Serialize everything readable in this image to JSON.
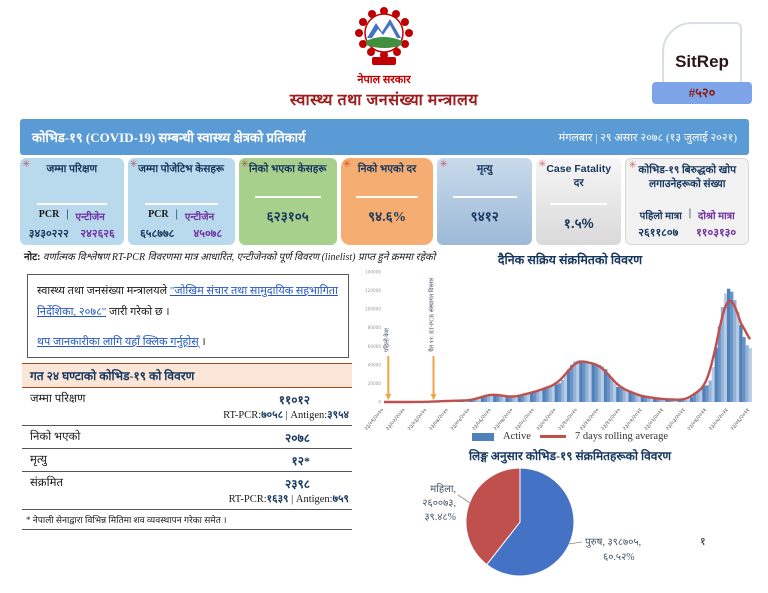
{
  "header": {
    "government": "नेपाल सरकार",
    "ministry": "स्वास्थ्य तथा जनसंख्या मन्त्रालय",
    "sitrep": {
      "label": "SitRep",
      "number": "#५२०"
    }
  },
  "title_bar": {
    "title": "कोभिड-१९ (COVID-19) सम्बन्धी स्वास्थ्य क्षेत्रको प्रतिकार्य",
    "date": "मंगलबार | २९ असार २०७८ (१३ जुलाई २०२१)"
  },
  "stat_cards": {
    "total_tests": {
      "title": "जम्मा परिक्षण",
      "col1": "PCR",
      "sep": "|",
      "col2": "एन्टीजेन",
      "val1": "३४३०२२२",
      "val2": "२४२६२६"
    },
    "total_positive": {
      "title": "जम्मा पोजेटिभ केसहरू",
      "col1": "PCR",
      "sep": "|",
      "col2": "एन्टीजेन",
      "val1": "६५८७७८",
      "val2": "४५०७८"
    },
    "recovered": {
      "title": "निको भएका केसहरू",
      "value": "६२३१०५"
    },
    "recovery_rate": {
      "title": "निको भएको दर",
      "value": "९४.६%"
    },
    "deaths": {
      "title": "मृत्यु",
      "value": "९४१२"
    },
    "cfr": {
      "title_en": "Case Fatality",
      "title_ne": "दर",
      "value": "१.५%"
    },
    "vaccinated": {
      "title": "कोभिड-१९ बिरुद्धको खोप लगाउनेहरूको संख्या",
      "col1": "पहिलो मात्रा",
      "sep": "|",
      "col2": "दोश्रो मात्रा",
      "val1": "२६११८०७",
      "val2": "११०३१३०"
    }
  },
  "note": "वर्णात्मक विश्लेषण RT-PCR विवरणमा मात्र आधारित, एन्टीजेनको पूर्ण विवरण (linelist) प्राप्त हुने क्रममा रहेको",
  "note_prefix": "नोट:",
  "info_box": {
    "line1_prefix": "स्वास्थ्य तथा जनसंख्या मन्त्रालयले ",
    "line1_link": "\"जोखिम संचार तथा सामुदायिक सहभागिता निर्देशिका, २०७८\"",
    "line1_suffix": " जारी गरेको छ ।",
    "line2_link": "थप जानकारीका लागि यहाँ क्लिक गर्नुहोस्",
    "line2_suffix": " ।"
  },
  "last24": {
    "header": "गत २४ घण्टाको कोभिड-१९ को विवरण",
    "rows": [
      {
        "label": "जम्मा परिक्षण",
        "value": "११०१२",
        "sub_label1": "RT-PCR:",
        "sub_value1": "७०५८",
        "sub_sep": " | ",
        "sub_label2": "Antigen:",
        "sub_value2": "३९५४"
      },
      {
        "label": "निको भएको",
        "value": "२०७८"
      },
      {
        "label": "मृत्यु",
        "value": "१२*"
      },
      {
        "label": "संक्रमित",
        "value": "२३९८",
        "sub_label1": "RT-PCR:",
        "sub_value1": "१६३९",
        "sub_sep": " | ",
        "sub_label2": "Antigen:",
        "sub_value2": "७५९"
      }
    ],
    "footnote": "* नेपाली सेनाद्वारा विभिन्न मितिमा शव व्यवस्थापन गरेका समेत ।"
  },
  "chart_data": [
    {
      "type": "area",
      "title": "दैनिक सक्रिय संक्रमितको विवरण",
      "categories": [
        "२३/०१/२०२०",
        "२३/०२/२०२०",
        "२३/०३/२०२०",
        "२३/०४/२०२०",
        "२३/०५/२०२०",
        "२३/०६/२०२०",
        "२३/०७/२०२०",
        "२३/०८/२०२०",
        "२३/०९/२०२०",
        "२३/१०/२०२०",
        "२३/११/२०२०",
        "२३/१२/२०२०",
        "२३/०१/२०२१",
        "२३/०२/२०२१",
        "२३/०३/२०२१",
        "२३/०४/२०२१",
        "२३/०५/२०२१",
        "२३/०६/२०२१"
      ],
      "series": [
        {
          "name": "Active",
          "type": "bar",
          "color": "#95b3d7",
          "values": [
            0,
            0,
            150,
            1200,
            1800,
            8500,
            5200,
            11000,
            19000,
            45000,
            40000,
            15000,
            6000,
            3000,
            2200,
            18000,
            122000,
            58000
          ]
        },
        {
          "name": "7 days rolling average",
          "type": "line",
          "color": "#c0504d"
        }
      ],
      "ylim": [
        0,
        140000
      ],
      "y_ticks": [
        0,
        20000,
        40000,
        60000,
        80000,
        100000,
        120000,
        140000
      ],
      "legend": [
        "Active",
        "7 days rolling average"
      ],
      "annotations": [
        {
          "label": "पहिलो केश",
          "x_index": 0.2
        },
        {
          "label": "चैत ११: RT-PCR संस्थागत विस्तार",
          "x_index": 2.3
        }
      ]
    },
    {
      "type": "pie",
      "title": "लिङ्ग अनुसार कोभिड-१९ संक्रमितहरूको विवरण",
      "slices": [
        {
          "label": "पुरुष",
          "value": 398705,
          "value_devanagari": "३९८७०५",
          "pct": 60.52,
          "pct_devanagari": "६०.५२%",
          "color": "#4472c4"
        },
        {
          "label": "महिला",
          "value": 260073,
          "value_devanagari": "२६००७३",
          "pct": 39.48,
          "pct_devanagari": "३९.४८%",
          "color": "#c0504d"
        }
      ],
      "label_lines": {
        "female": [
          "महिला,",
          "२६००७३,",
          "३९.४८%"
        ],
        "male": [
          "पुरुष, ३९८७०५,",
          "६०.५२%"
        ]
      }
    }
  ],
  "page_number": "१"
}
